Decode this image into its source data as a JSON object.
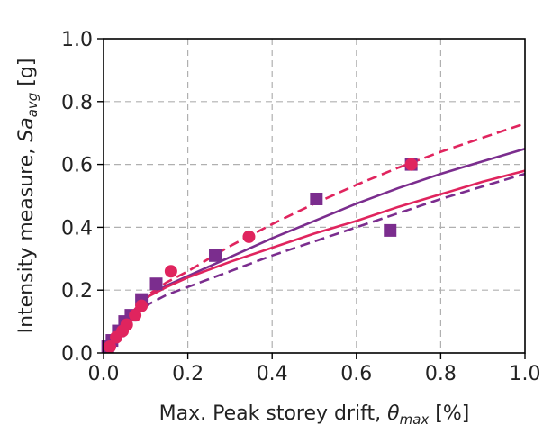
{
  "chart_data": {
    "type": "scatter",
    "xlabel_prefix": "Max. Peak storey drift, ",
    "xlabel_symbol": "θ",
    "xlabel_subscript": "max",
    "xlabel_suffix": " [%]",
    "ylabel_prefix": "Intensity measure, ",
    "ylabel_symbol": "Sa",
    "ylabel_subscript": "avg",
    "ylabel_suffix": " [g]",
    "xlim": [
      0.0,
      1.0
    ],
    "ylim": [
      0.0,
      1.0
    ],
    "xticks": [
      "0.0",
      "0.2",
      "0.4",
      "0.6",
      "0.8",
      "1.0"
    ],
    "yticks": [
      "0.0",
      "0.2",
      "0.4",
      "0.6",
      "0.8",
      "1.0"
    ],
    "grid": true,
    "legend": "none",
    "colors": {
      "purple": "#7b2d8e",
      "crimson": "#e0245e"
    },
    "series": [
      {
        "kind": "scatter",
        "marker": "square",
        "color": "#7b2d8e",
        "x": [
          0.01,
          0.02,
          0.035,
          0.05,
          0.065,
          0.09,
          0.125,
          0.265,
          0.505,
          0.68,
          0.73
        ],
        "y": [
          0.02,
          0.04,
          0.07,
          0.1,
          0.12,
          0.17,
          0.22,
          0.31,
          0.49,
          0.39,
          0.6
        ]
      },
      {
        "kind": "scatter",
        "marker": "circle",
        "color": "#e0245e",
        "x": [
          0.015,
          0.03,
          0.045,
          0.055,
          0.075,
          0.09,
          0.16,
          0.345,
          0.73
        ],
        "y": [
          0.02,
          0.05,
          0.07,
          0.09,
          0.12,
          0.15,
          0.26,
          0.37,
          0.6
        ]
      },
      {
        "kind": "line",
        "dash": "solid",
        "color": "#7b2d8e",
        "x": [
          0.0,
          0.02,
          0.05,
          0.1,
          0.15,
          0.2,
          0.3,
          0.4,
          0.5,
          0.6,
          0.7,
          0.8,
          0.9,
          1.0
        ],
        "y": [
          0.0,
          0.04,
          0.1,
          0.175,
          0.215,
          0.245,
          0.305,
          0.365,
          0.42,
          0.475,
          0.525,
          0.57,
          0.61,
          0.65
        ]
      },
      {
        "kind": "line",
        "dash": "dashed",
        "color": "#7b2d8e",
        "x": [
          0.0,
          0.02,
          0.05,
          0.1,
          0.15,
          0.2,
          0.3,
          0.4,
          0.5,
          0.6,
          0.7,
          0.8,
          0.9,
          1.0
        ],
        "y": [
          0.0,
          0.04,
          0.09,
          0.15,
          0.185,
          0.21,
          0.26,
          0.31,
          0.355,
          0.4,
          0.445,
          0.49,
          0.53,
          0.57
        ]
      },
      {
        "kind": "line",
        "dash": "solid",
        "color": "#e0245e",
        "x": [
          0.0,
          0.02,
          0.05,
          0.1,
          0.15,
          0.2,
          0.3,
          0.4,
          0.5,
          0.6,
          0.7,
          0.8,
          0.9,
          1.0
        ],
        "y": [
          0.0,
          0.04,
          0.1,
          0.175,
          0.21,
          0.24,
          0.29,
          0.335,
          0.38,
          0.42,
          0.465,
          0.505,
          0.545,
          0.58
        ]
      },
      {
        "kind": "line",
        "dash": "dashed",
        "color": "#e0245e",
        "x": [
          0.0,
          0.02,
          0.05,
          0.1,
          0.15,
          0.2,
          0.3,
          0.4,
          0.5,
          0.6,
          0.7,
          0.8,
          0.9,
          1.0
        ],
        "y": [
          0.0,
          0.04,
          0.1,
          0.18,
          0.225,
          0.26,
          0.34,
          0.41,
          0.475,
          0.535,
          0.59,
          0.64,
          0.685,
          0.73
        ]
      }
    ]
  }
}
